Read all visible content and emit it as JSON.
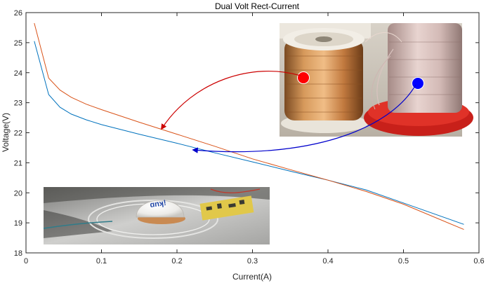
{
  "chart_data": {
    "type": "line",
    "title": "Dual Volt Rect-Current",
    "xlabel": "Current(A)",
    "ylabel": "Voltage(V)",
    "xlim": [
      0,
      0.6
    ],
    "ylim": [
      18,
      26
    ],
    "xticks": [
      0,
      0.1,
      0.2,
      0.3,
      0.4,
      0.5,
      0.6
    ],
    "xtick_labels": [
      "0",
      "0.1",
      "0.2",
      "0.3",
      "0.4",
      "0.5",
      "0.6"
    ],
    "yticks": [
      18,
      19,
      20,
      21,
      22,
      23,
      24,
      25,
      26
    ],
    "ytick_labels": [
      "18",
      "19",
      "20",
      "21",
      "22",
      "23",
      "24",
      "25",
      "26"
    ],
    "grid": false,
    "series": [
      {
        "color": "#0072BD",
        "x": [
          0.011,
          0.03,
          0.045,
          0.06,
          0.08,
          0.1,
          0.15,
          0.2,
          0.25,
          0.3,
          0.35,
          0.4,
          0.45,
          0.5,
          0.58
        ],
        "y": [
          25.05,
          23.27,
          22.85,
          22.62,
          22.43,
          22.27,
          21.95,
          21.65,
          21.33,
          21.03,
          20.72,
          20.42,
          20.1,
          19.66,
          18.95
        ]
      },
      {
        "color": "#D95319",
        "x": [
          0.011,
          0.03,
          0.045,
          0.06,
          0.08,
          0.1,
          0.15,
          0.2,
          0.25,
          0.3,
          0.35,
          0.4,
          0.45,
          0.5,
          0.58
        ],
        "y": [
          25.65,
          23.82,
          23.42,
          23.18,
          22.95,
          22.77,
          22.35,
          21.95,
          21.55,
          21.13,
          20.77,
          20.42,
          20.05,
          19.62,
          18.78
        ]
      }
    ]
  },
  "annotations": {
    "copper_marker_color": "#ff0000",
    "litz_marker_color": "#0000ff",
    "red_arrow_color": "#cc0000",
    "blue_arrow_color": "#0000cc",
    "wire_photo": "photo-of-wire-spools",
    "coil_photo": "photo-of-coil-and-dome"
  }
}
